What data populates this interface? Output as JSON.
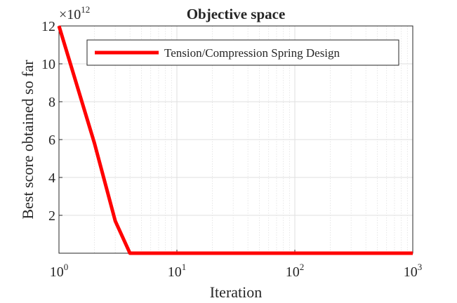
{
  "chart_data": {
    "type": "line",
    "title": "Objective space",
    "xlabel": "Iteration",
    "ylabel": "Best score obtained so far",
    "x_scale": "log",
    "xlim": [
      1,
      1000
    ],
    "ylim": [
      0,
      12000000000000
    ],
    "y_multiplier_label": "×10",
    "y_multiplier_exponent": "12",
    "x_ticks": [
      {
        "base": "10",
        "exp": "0",
        "value": 1
      },
      {
        "base": "10",
        "exp": "1",
        "value": 10
      },
      {
        "base": "10",
        "exp": "2",
        "value": 100
      },
      {
        "base": "10",
        "exp": "3",
        "value": 1000
      }
    ],
    "y_ticks": [
      {
        "label": "2",
        "value": 2000000000000
      },
      {
        "label": "4",
        "value": 4000000000000
      },
      {
        "label": "6",
        "value": 6000000000000
      },
      {
        "label": "8",
        "value": 8000000000000
      },
      {
        "label": "10",
        "value": 10000000000000
      },
      {
        "label": "12",
        "value": 12000000000000
      }
    ],
    "grid": true,
    "minor_grid": true,
    "legend_position": "top-right",
    "series": [
      {
        "name": "Tension/Compression Spring Design",
        "color": "#ff0000",
        "x": [
          1,
          2,
          3,
          4,
          10,
          100,
          1000
        ],
        "y": [
          12000000000000,
          5800000000000,
          1700000000000,
          0,
          0,
          0,
          0
        ]
      }
    ]
  }
}
